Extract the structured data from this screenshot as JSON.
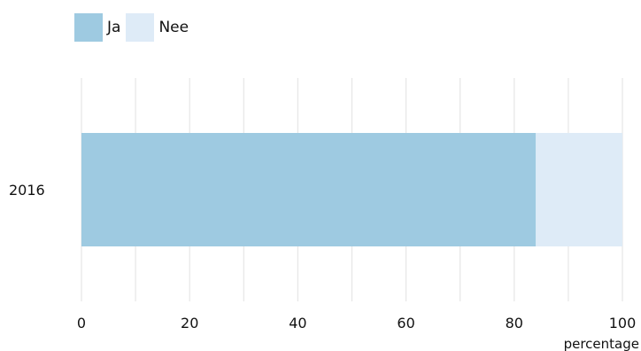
{
  "chart_data": {
    "type": "bar",
    "orientation": "horizontal",
    "stacked": true,
    "categories": [
      "2016"
    ],
    "series": [
      {
        "name": "Ja",
        "values": [
          84
        ],
        "color": "#9ecae1"
      },
      {
        "name": "Nee",
        "values": [
          16
        ],
        "color": "#deebf7"
      }
    ],
    "xlabel": "percentage",
    "ylabel": "",
    "xlim": [
      0,
      100
    ],
    "xticks": [
      0,
      20,
      40,
      60,
      80,
      100
    ],
    "grid": true,
    "legend_position": "top-left"
  }
}
